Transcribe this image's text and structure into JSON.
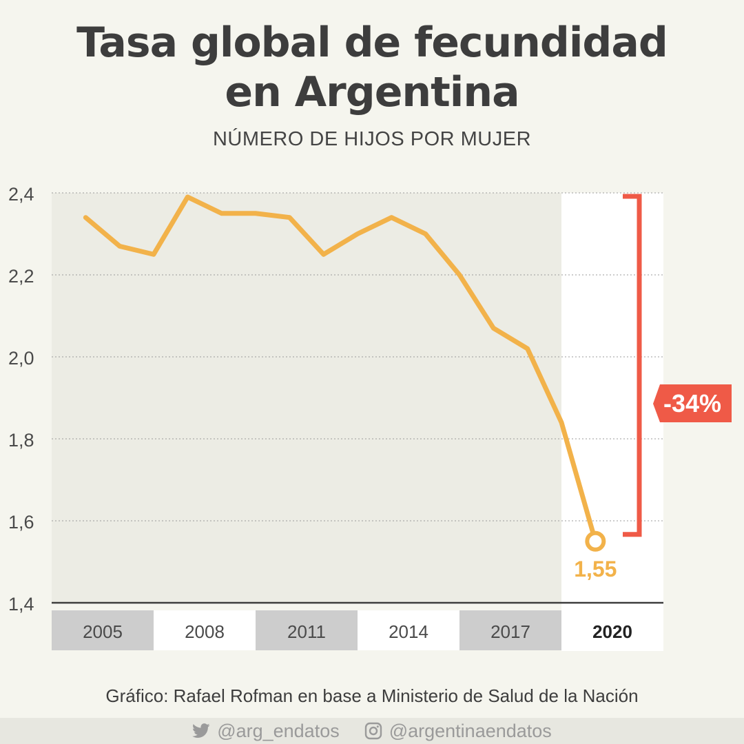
{
  "header": {
    "title_line1": "Tasa global de fecundidad",
    "title_line2": "en Argentina",
    "subtitle": "NÚMERO DE HIJOS POR MUJER"
  },
  "chart_data": {
    "type": "line",
    "title": "Tasa global de fecundidad en Argentina",
    "subtitle": "NÚMERO DE HIJOS POR MUJER",
    "x": [
      2005,
      2006,
      2007,
      2008,
      2009,
      2010,
      2011,
      2012,
      2013,
      2014,
      2015,
      2016,
      2017,
      2018,
      2019,
      2020
    ],
    "y": [
      2.34,
      2.27,
      2.25,
      2.39,
      2.35,
      2.35,
      2.34,
      2.25,
      2.3,
      2.34,
      2.3,
      2.2,
      2.07,
      2.02,
      1.84,
      1.55
    ],
    "ylim": [
      1.4,
      2.4
    ],
    "yticks": [
      "1,4",
      "1,6",
      "1,8",
      "2,0",
      "2,2",
      "2,4"
    ],
    "ytick_values": [
      1.4,
      1.6,
      1.8,
      2.0,
      2.2,
      2.4
    ],
    "xtick_labels": [
      "2005",
      "2008",
      "2011",
      "2014",
      "2017",
      "2020"
    ],
    "xtick_values": [
      2005,
      2008,
      2011,
      2014,
      2017,
      2020
    ],
    "last_value_label": "1,55",
    "change_label": "-34%",
    "grid": true,
    "colors": {
      "line": "#f2b24a",
      "change": "#ef5a47",
      "shade": "#ecece4",
      "highlight": "#ffffff",
      "tick_band_gray": "#cdcdcd",
      "text": "#3d3d3d"
    }
  },
  "source": "Gráfico: Rafael Rofman en base a Ministerio de Salud de la Nación",
  "footer": {
    "twitter_icon": "twitter-bird-icon",
    "twitter": "@arg_endatos",
    "instagram_icon": "instagram-icon",
    "instagram": "@argentinaendatos"
  }
}
